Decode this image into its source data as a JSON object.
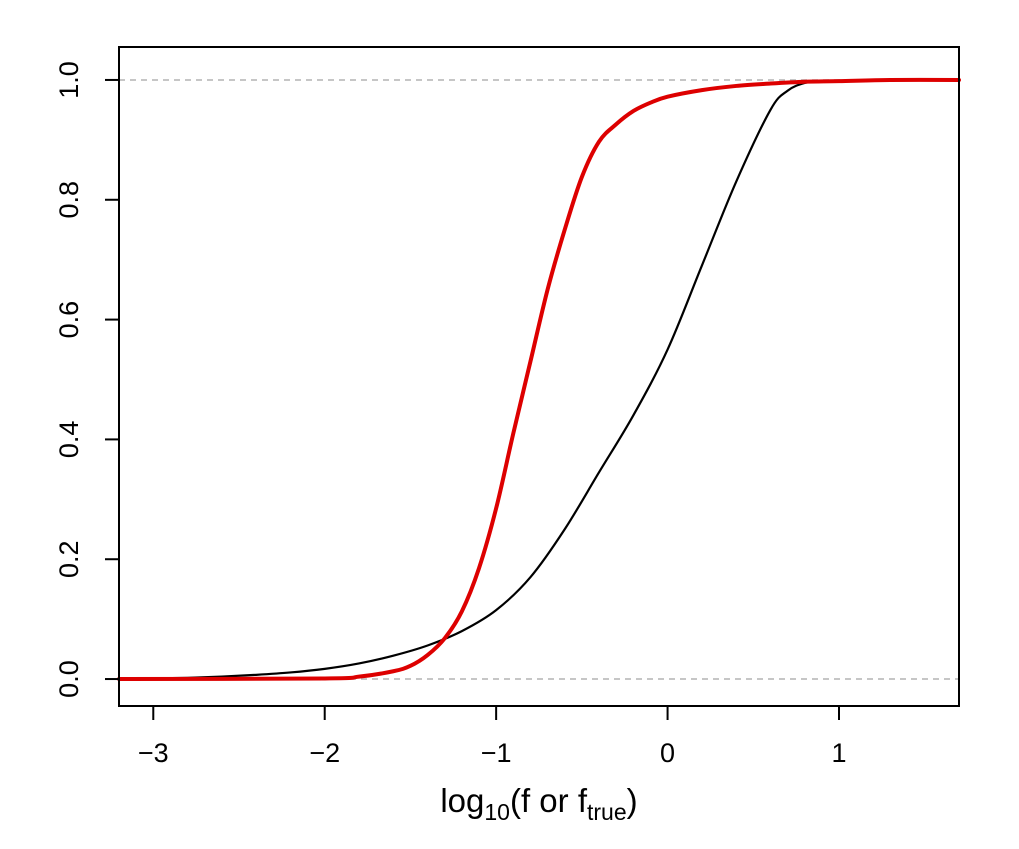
{
  "chart_data": {
    "type": "line",
    "xlabel": {
      "prefix": "log",
      "prefix_sub": "10",
      "middle": "(f or f",
      "middle_sub": "true",
      "suffix": ")"
    },
    "ylabel": "",
    "xlim": [
      -3.2,
      1.7
    ],
    "ylim": [
      -0.045,
      1.055
    ],
    "x_ticks": [
      -3,
      -2,
      -1,
      0,
      1
    ],
    "x_tick_labels": [
      "−3",
      "−2",
      "−1",
      "0",
      "1"
    ],
    "y_ticks": [
      0.0,
      0.2,
      0.4,
      0.6,
      0.8,
      1.0
    ],
    "y_tick_labels": [
      "0.0",
      "0.2",
      "0.4",
      "0.6",
      "0.8",
      "1.0"
    ],
    "reference_lines": [
      {
        "axis": "y",
        "value": 0.0,
        "style": "dashed",
        "color": "#b3b3b3"
      },
      {
        "axis": "y",
        "value": 1.0,
        "style": "dashed",
        "color": "#b3b3b3"
      }
    ],
    "grid": false,
    "legend": "none",
    "series": [
      {
        "color": "#000000",
        "x": [
          -3.2,
          -3.0,
          -2.8,
          -2.6,
          -2.4,
          -2.2,
          -2.0,
          -1.8,
          -1.6,
          -1.4,
          -1.2,
          -1.0,
          -0.8,
          -0.6,
          -0.4,
          -0.2,
          0.0,
          0.2,
          0.4,
          0.6,
          0.7,
          0.8,
          0.9,
          1.0,
          1.2,
          1.4,
          1.7
        ],
        "y": [
          0.0,
          0.001,
          0.002,
          0.004,
          0.007,
          0.011,
          0.017,
          0.026,
          0.039,
          0.056,
          0.08,
          0.115,
          0.17,
          0.25,
          0.345,
          0.44,
          0.55,
          0.69,
          0.83,
          0.95,
          0.982,
          0.995,
          0.998,
          0.999,
          1.0,
          1.0,
          1.0
        ]
      },
      {
        "color": "#dd0000",
        "x": [
          -3.2,
          -2.0,
          -1.8,
          -1.6,
          -1.5,
          -1.4,
          -1.3,
          -1.2,
          -1.1,
          -1.0,
          -0.9,
          -0.8,
          -0.7,
          -0.6,
          -0.5,
          -0.4,
          -0.3,
          -0.2,
          -0.1,
          0.0,
          0.2,
          0.4,
          0.6,
          0.8,
          1.0,
          1.3,
          1.7
        ],
        "y": [
          0.0,
          0.001,
          0.004,
          0.013,
          0.022,
          0.04,
          0.068,
          0.113,
          0.185,
          0.285,
          0.41,
          0.53,
          0.65,
          0.75,
          0.838,
          0.897,
          0.926,
          0.948,
          0.962,
          0.972,
          0.983,
          0.99,
          0.994,
          0.997,
          0.998,
          1.0,
          1.0
        ]
      }
    ]
  }
}
